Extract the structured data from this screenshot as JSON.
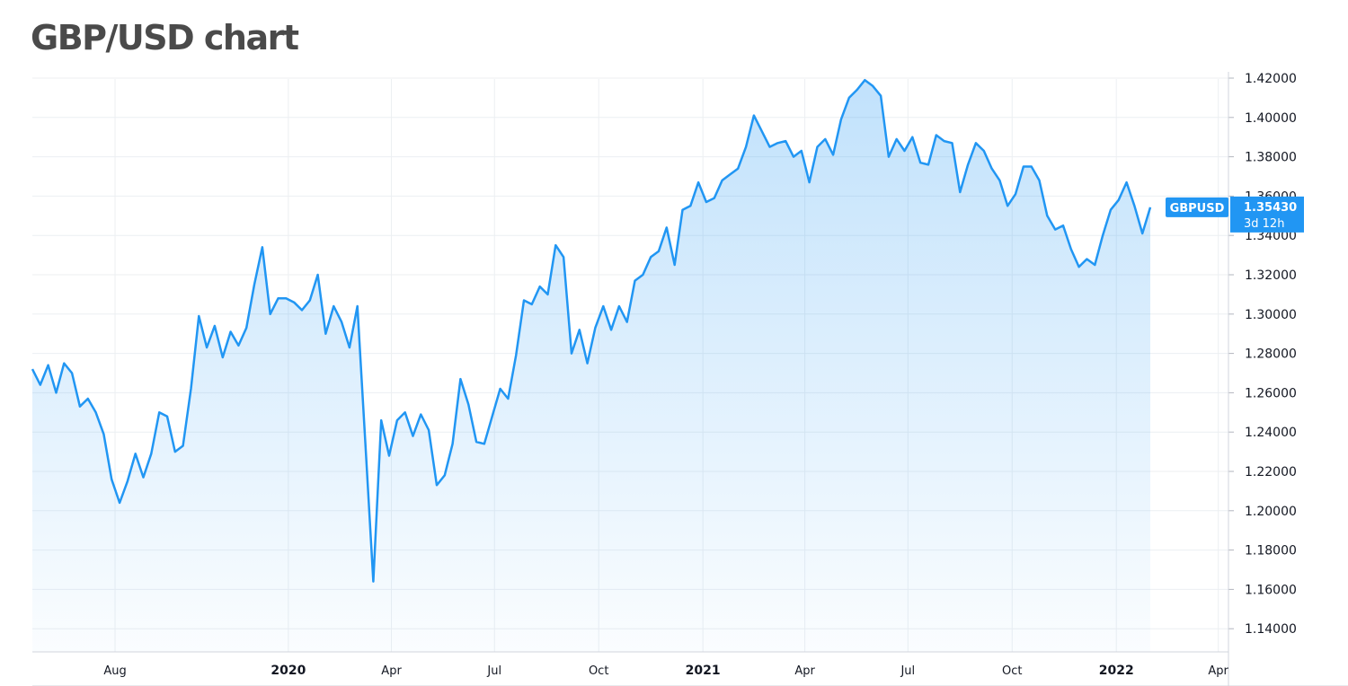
{
  "title": "GBP/USD chart",
  "chart_data": {
    "type": "area",
    "symbol": "GBPUSD",
    "last_value_label": "1.35430",
    "countdown_label": "3d 12h",
    "y_ticks": [
      "1.42000",
      "1.40000",
      "1.38000",
      "1.36000",
      "1.34000",
      "1.32000",
      "1.30000",
      "1.28000",
      "1.26000",
      "1.24000",
      "1.22000",
      "1.20000",
      "1.18000",
      "1.16000",
      "1.14000"
    ],
    "x_ticks": [
      {
        "label": "Aug",
        "date": "2019-08-01",
        "bold": false
      },
      {
        "label": "2020",
        "date": "2020-01-01",
        "bold": true
      },
      {
        "label": "Apr",
        "date": "2020-04-01",
        "bold": false
      },
      {
        "label": "Jul",
        "date": "2020-07-01",
        "bold": false
      },
      {
        "label": "Oct",
        "date": "2020-10-01",
        "bold": false
      },
      {
        "label": "2021",
        "date": "2021-01-01",
        "bold": true
      },
      {
        "label": "Apr",
        "date": "2021-04-01",
        "bold": false
      },
      {
        "label": "Jul",
        "date": "2021-07-01",
        "bold": false
      },
      {
        "label": "Oct",
        "date": "2021-10-01",
        "bold": false
      },
      {
        "label": "2022",
        "date": "2022-01-01",
        "bold": true
      },
      {
        "label": "Apr",
        "date": "2022-04-01",
        "bold": false
      }
    ],
    "ylim": [
      1.13,
      1.42
    ],
    "xlim": [
      "2019-05-20",
      "2022-04-10"
    ],
    "grid": true,
    "colors": {
      "line": "#2196f3",
      "fill": "#2196f3",
      "badge": "#2196f3",
      "grid": "#eceff2",
      "text": "#131722"
    },
    "series": [
      {
        "values": [
          {
            "x": "2019-05-20",
            "y": 1.272
          },
          {
            "x": "2019-05-27",
            "y": 1.264
          },
          {
            "x": "2019-06-03",
            "y": 1.274
          },
          {
            "x": "2019-06-10",
            "y": 1.26
          },
          {
            "x": "2019-06-17",
            "y": 1.275
          },
          {
            "x": "2019-06-24",
            "y": 1.27
          },
          {
            "x": "2019-07-01",
            "y": 1.253
          },
          {
            "x": "2019-07-08",
            "y": 1.257
          },
          {
            "x": "2019-07-15",
            "y": 1.25
          },
          {
            "x": "2019-07-22",
            "y": 1.239
          },
          {
            "x": "2019-07-29",
            "y": 1.216
          },
          {
            "x": "2019-08-05",
            "y": 1.204
          },
          {
            "x": "2019-08-12",
            "y": 1.215
          },
          {
            "x": "2019-08-19",
            "y": 1.229
          },
          {
            "x": "2019-08-26",
            "y": 1.217
          },
          {
            "x": "2019-09-02",
            "y": 1.229
          },
          {
            "x": "2019-09-09",
            "y": 1.25
          },
          {
            "x": "2019-09-16",
            "y": 1.248
          },
          {
            "x": "2019-09-23",
            "y": 1.23
          },
          {
            "x": "2019-09-30",
            "y": 1.233
          },
          {
            "x": "2019-10-07",
            "y": 1.262
          },
          {
            "x": "2019-10-14",
            "y": 1.299
          },
          {
            "x": "2019-10-21",
            "y": 1.283
          },
          {
            "x": "2019-10-28",
            "y": 1.294
          },
          {
            "x": "2019-11-04",
            "y": 1.278
          },
          {
            "x": "2019-11-11",
            "y": 1.291
          },
          {
            "x": "2019-11-18",
            "y": 1.284
          },
          {
            "x": "2019-11-25",
            "y": 1.293
          },
          {
            "x": "2019-12-02",
            "y": 1.315
          },
          {
            "x": "2019-12-09",
            "y": 1.334
          },
          {
            "x": "2019-12-16",
            "y": 1.3
          },
          {
            "x": "2019-12-23",
            "y": 1.308
          },
          {
            "x": "2019-12-30",
            "y": 1.308
          },
          {
            "x": "2020-01-06",
            "y": 1.306
          },
          {
            "x": "2020-01-13",
            "y": 1.302
          },
          {
            "x": "2020-01-20",
            "y": 1.307
          },
          {
            "x": "2020-01-27",
            "y": 1.32
          },
          {
            "x": "2020-02-03",
            "y": 1.29
          },
          {
            "x": "2020-02-10",
            "y": 1.304
          },
          {
            "x": "2020-02-17",
            "y": 1.296
          },
          {
            "x": "2020-02-24",
            "y": 1.283
          },
          {
            "x": "2020-03-02",
            "y": 1.304
          },
          {
            "x": "2020-03-09",
            "y": 1.234
          },
          {
            "x": "2020-03-16",
            "y": 1.164
          },
          {
            "x": "2020-03-23",
            "y": 1.246
          },
          {
            "x": "2020-03-30",
            "y": 1.228
          },
          {
            "x": "2020-04-06",
            "y": 1.246
          },
          {
            "x": "2020-04-13",
            "y": 1.25
          },
          {
            "x": "2020-04-20",
            "y": 1.238
          },
          {
            "x": "2020-04-27",
            "y": 1.249
          },
          {
            "x": "2020-05-04",
            "y": 1.241
          },
          {
            "x": "2020-05-11",
            "y": 1.213
          },
          {
            "x": "2020-05-18",
            "y": 1.218
          },
          {
            "x": "2020-05-25",
            "y": 1.234
          },
          {
            "x": "2020-06-01",
            "y": 1.267
          },
          {
            "x": "2020-06-08",
            "y": 1.254
          },
          {
            "x": "2020-06-15",
            "y": 1.235
          },
          {
            "x": "2020-06-22",
            "y": 1.234
          },
          {
            "x": "2020-06-29",
            "y": 1.248
          },
          {
            "x": "2020-07-06",
            "y": 1.262
          },
          {
            "x": "2020-07-13",
            "y": 1.257
          },
          {
            "x": "2020-07-20",
            "y": 1.279
          },
          {
            "x": "2020-07-27",
            "y": 1.307
          },
          {
            "x": "2020-08-03",
            "y": 1.305
          },
          {
            "x": "2020-08-10",
            "y": 1.314
          },
          {
            "x": "2020-08-17",
            "y": 1.31
          },
          {
            "x": "2020-08-24",
            "y": 1.335
          },
          {
            "x": "2020-08-31",
            "y": 1.329
          },
          {
            "x": "2020-09-07",
            "y": 1.28
          },
          {
            "x": "2020-09-14",
            "y": 1.292
          },
          {
            "x": "2020-09-21",
            "y": 1.275
          },
          {
            "x": "2020-09-28",
            "y": 1.293
          },
          {
            "x": "2020-10-05",
            "y": 1.304
          },
          {
            "x": "2020-10-12",
            "y": 1.292
          },
          {
            "x": "2020-10-19",
            "y": 1.304
          },
          {
            "x": "2020-10-26",
            "y": 1.296
          },
          {
            "x": "2020-11-02",
            "y": 1.317
          },
          {
            "x": "2020-11-09",
            "y": 1.32
          },
          {
            "x": "2020-11-16",
            "y": 1.329
          },
          {
            "x": "2020-11-23",
            "y": 1.332
          },
          {
            "x": "2020-11-30",
            "y": 1.344
          },
          {
            "x": "2020-12-07",
            "y": 1.325
          },
          {
            "x": "2020-12-14",
            "y": 1.353
          },
          {
            "x": "2020-12-21",
            "y": 1.355
          },
          {
            "x": "2020-12-28",
            "y": 1.367
          },
          {
            "x": "2021-01-04",
            "y": 1.357
          },
          {
            "x": "2021-01-11",
            "y": 1.359
          },
          {
            "x": "2021-01-18",
            "y": 1.368
          },
          {
            "x": "2021-01-25",
            "y": 1.371
          },
          {
            "x": "2021-02-01",
            "y": 1.374
          },
          {
            "x": "2021-02-08",
            "y": 1.385
          },
          {
            "x": "2021-02-15",
            "y": 1.401
          },
          {
            "x": "2021-02-22",
            "y": 1.393
          },
          {
            "x": "2021-03-01",
            "y": 1.385
          },
          {
            "x": "2021-03-08",
            "y": 1.387
          },
          {
            "x": "2021-03-15",
            "y": 1.388
          },
          {
            "x": "2021-03-22",
            "y": 1.38
          },
          {
            "x": "2021-03-29",
            "y": 1.383
          },
          {
            "x": "2021-04-05",
            "y": 1.367
          },
          {
            "x": "2021-04-12",
            "y": 1.385
          },
          {
            "x": "2021-04-19",
            "y": 1.389
          },
          {
            "x": "2021-04-26",
            "y": 1.381
          },
          {
            "x": "2021-05-03",
            "y": 1.399
          },
          {
            "x": "2021-05-10",
            "y": 1.41
          },
          {
            "x": "2021-05-17",
            "y": 1.414
          },
          {
            "x": "2021-05-24",
            "y": 1.419
          },
          {
            "x": "2021-05-31",
            "y": 1.416
          },
          {
            "x": "2021-06-07",
            "y": 1.411
          },
          {
            "x": "2021-06-14",
            "y": 1.38
          },
          {
            "x": "2021-06-21",
            "y": 1.389
          },
          {
            "x": "2021-06-28",
            "y": 1.383
          },
          {
            "x": "2021-07-05",
            "y": 1.39
          },
          {
            "x": "2021-07-12",
            "y": 1.377
          },
          {
            "x": "2021-07-19",
            "y": 1.376
          },
          {
            "x": "2021-07-26",
            "y": 1.391
          },
          {
            "x": "2021-08-02",
            "y": 1.388
          },
          {
            "x": "2021-08-09",
            "y": 1.387
          },
          {
            "x": "2021-08-16",
            "y": 1.362
          },
          {
            "x": "2021-08-23",
            "y": 1.376
          },
          {
            "x": "2021-08-30",
            "y": 1.387
          },
          {
            "x": "2021-09-06",
            "y": 1.383
          },
          {
            "x": "2021-09-13",
            "y": 1.374
          },
          {
            "x": "2021-09-20",
            "y": 1.368
          },
          {
            "x": "2021-09-27",
            "y": 1.355
          },
          {
            "x": "2021-10-04",
            "y": 1.361
          },
          {
            "x": "2021-10-11",
            "y": 1.375
          },
          {
            "x": "2021-10-18",
            "y": 1.375
          },
          {
            "x": "2021-10-25",
            "y": 1.368
          },
          {
            "x": "2021-11-01",
            "y": 1.35
          },
          {
            "x": "2021-11-08",
            "y": 1.343
          },
          {
            "x": "2021-11-15",
            "y": 1.345
          },
          {
            "x": "2021-11-22",
            "y": 1.333
          },
          {
            "x": "2021-11-29",
            "y": 1.324
          },
          {
            "x": "2021-12-06",
            "y": 1.328
          },
          {
            "x": "2021-12-13",
            "y": 1.325
          },
          {
            "x": "2021-12-20",
            "y": 1.34
          },
          {
            "x": "2021-12-27",
            "y": 1.353
          },
          {
            "x": "2022-01-03",
            "y": 1.358
          },
          {
            "x": "2022-01-10",
            "y": 1.367
          },
          {
            "x": "2022-01-17",
            "y": 1.355
          },
          {
            "x": "2022-01-24",
            "y": 1.341
          },
          {
            "x": "2022-01-31",
            "y": 1.3543
          }
        ]
      }
    ]
  }
}
